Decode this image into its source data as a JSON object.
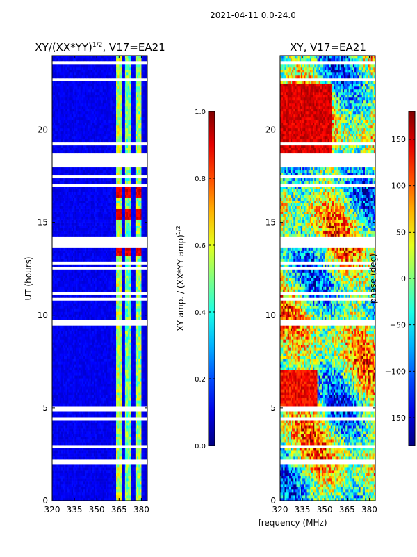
{
  "figure": {
    "suptitle": "2021-04-11 0.0-24.0",
    "xlabel": "frequency (MHz)"
  },
  "chart_data": [
    {
      "type": "heatmap",
      "title_main": "XY/(XX*YY)",
      "title_sup": "1/2",
      "title_rest": ", V17=EA21",
      "xlabel": "",
      "ylabel": "UT (hours)",
      "xlim": [
        320,
        384
      ],
      "ylim": [
        0,
        24
      ],
      "xticks": [
        320,
        335,
        350,
        365,
        380
      ],
      "yticks": [
        0,
        5,
        10,
        15,
        20
      ],
      "colormap": "jet",
      "description": "Normalized XY amplitude; low (~0.05) below 362 MHz, elevated (0.4-0.9) in bands 363-383 MHz",
      "bands": [
        {
          "mhz": [
            363,
            367
          ],
          "level": 0.55
        },
        {
          "mhz": [
            369,
            373
          ],
          "level": 0.48
        },
        {
          "mhz": [
            376,
            380
          ],
          "level": 0.52
        }
      ],
      "bright_hours": [
        [
          13.2,
          13.9
        ],
        [
          15.2,
          15.8
        ],
        [
          16.3,
          17.0
        ]
      ],
      "flagged_hours": [
        9.6,
        13.8,
        14.0,
        18.1,
        18.3,
        18.6,
        2.1,
        2.9
      ]
    },
    {
      "type": "colorbar",
      "label_main": "XY amp. / (XX*YY amp)",
      "label_sup": "1/2",
      "range": [
        0.0,
        1.0
      ],
      "ticks": [
        "0.0",
        "0.2",
        "0.4",
        "0.6",
        "0.8",
        "1.0"
      ],
      "colormap": "jet"
    },
    {
      "type": "heatmap",
      "title": "XY, V17=EA21",
      "xlabel": "",
      "ylabel": "",
      "xlim": [
        320,
        384
      ],
      "ylim": [
        0,
        24
      ],
      "xticks": [
        320,
        335,
        350,
        365,
        380
      ],
      "yticks": [
        0,
        5,
        10,
        15,
        20
      ],
      "colormap": "jet",
      "description": "XY phase in degrees, noisy across all frequencies",
      "flagged_hours": [
        9.6,
        13.8,
        14.0,
        18.1,
        18.3,
        18.6,
        2.1,
        2.9
      ]
    },
    {
      "type": "colorbar",
      "label": "phase (deg)",
      "range": [
        -180,
        180
      ],
      "ticks": [
        "−150",
        "−100",
        "−50",
        "0",
        "50",
        "100",
        "150"
      ],
      "tick_values": [
        -150,
        -100,
        -50,
        0,
        50,
        100,
        150
      ],
      "colormap": "jet"
    }
  ],
  "colors": {
    "jet_low": "#00007f",
    "jet_high": "#7f0000"
  }
}
